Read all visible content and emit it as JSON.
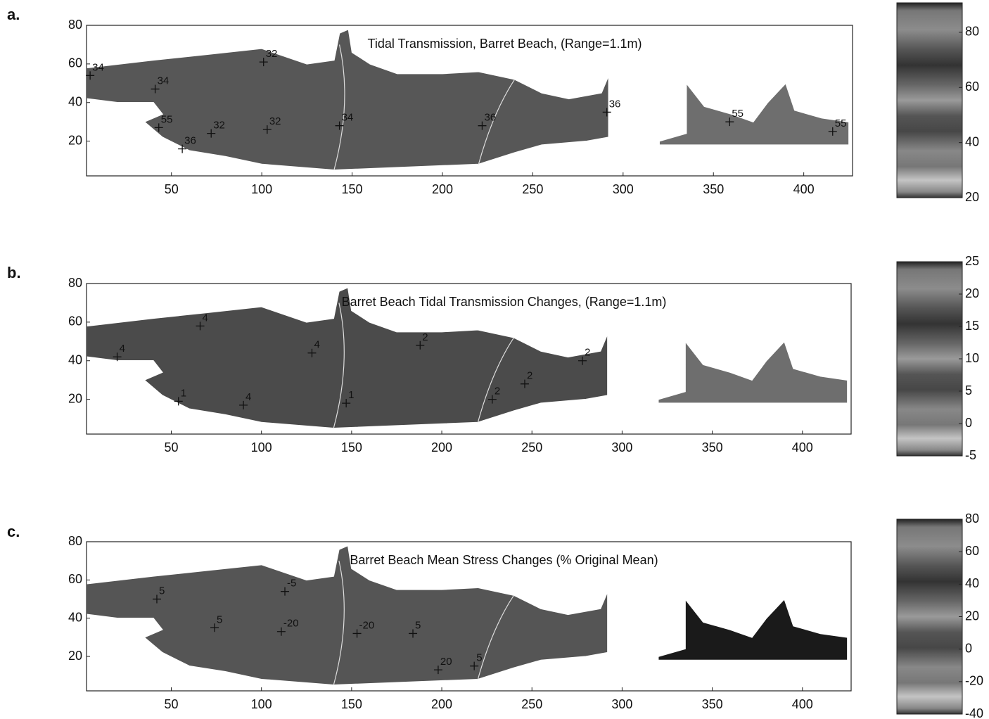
{
  "chart_data": [
    {
      "type": "contour",
      "panel_label": "a.",
      "title": "Tidal Transmission, Barret Beach, (Range=1.1m)",
      "xlim": [
        3,
        427
      ],
      "ylim": [
        2,
        80
      ],
      "xticks": [
        50,
        100,
        150,
        200,
        250,
        300,
        350,
        400
      ],
      "yticks": [
        20,
        40,
        60,
        80
      ],
      "fill": "#575757",
      "colorbar": {
        "clim": [
          20,
          90.7
        ],
        "ticks": [
          20,
          40,
          60,
          80
        ]
      },
      "contour_labels": [
        {
          "label": "34",
          "x": 5,
          "y": 54
        },
        {
          "label": "32",
          "x": 101,
          "y": 61
        },
        {
          "label": "34",
          "x": 41,
          "y": 47
        },
        {
          "label": "55",
          "x": 43,
          "y": 27
        },
        {
          "label": "32",
          "x": 72,
          "y": 24
        },
        {
          "label": "32",
          "x": 103,
          "y": 26
        },
        {
          "label": "36",
          "x": 56,
          "y": 16
        },
        {
          "label": "34",
          "x": 143,
          "y": 28
        },
        {
          "label": "36",
          "x": 222,
          "y": 28
        },
        {
          "label": "36",
          "x": 291,
          "y": 35
        },
        {
          "label": "55",
          "x": 359,
          "y": 30
        },
        {
          "label": "55",
          "x": 416,
          "y": 25
        }
      ]
    },
    {
      "type": "contour",
      "panel_label": "b.",
      "title": "Barret Beach Tidal Transmission Changes, (Range=1.1m)",
      "xlim": [
        3,
        427
      ],
      "ylim": [
        2,
        80
      ],
      "xticks": [
        50,
        100,
        150,
        200,
        250,
        300,
        350,
        400
      ],
      "yticks": [
        20,
        40,
        60,
        80
      ],
      "fill": "#4b4b4b",
      "colorbar": {
        "clim": [
          -5,
          25
        ],
        "ticks": [
          -5,
          0,
          5,
          10,
          15,
          20,
          25
        ]
      },
      "contour_labels": [
        {
          "label": "4",
          "x": 66,
          "y": 58
        },
        {
          "label": "4",
          "x": 20,
          "y": 42
        },
        {
          "label": "4",
          "x": 128,
          "y": 44
        },
        {
          "label": "2",
          "x": 188,
          "y": 48
        },
        {
          "label": "2",
          "x": 228,
          "y": 20
        },
        {
          "label": "2",
          "x": 246,
          "y": 28
        },
        {
          "label": "2",
          "x": 278,
          "y": 40
        },
        {
          "label": "1",
          "x": 54,
          "y": 19
        },
        {
          "label": "4",
          "x": 90,
          "y": 17
        },
        {
          "label": "1",
          "x": 147,
          "y": 18
        }
      ]
    },
    {
      "type": "contour",
      "panel_label": "c.",
      "title": "Barret Beach Mean Stress Changes (% Original Mean)",
      "xlim": [
        3,
        427
      ],
      "ylim": [
        2,
        80
      ],
      "xticks": [
        50,
        100,
        150,
        200,
        250,
        300,
        350,
        400
      ],
      "yticks": [
        20,
        40,
        60,
        80
      ],
      "fill": "#555555",
      "colorbar": {
        "clim": [
          -40,
          80
        ],
        "ticks": [
          -40,
          -20,
          0,
          20,
          40,
          60,
          80
        ]
      },
      "contour_labels": [
        {
          "label": "-5",
          "x": 113,
          "y": 54
        },
        {
          "label": "-20",
          "x": 111,
          "y": 33
        },
        {
          "label": "-20",
          "x": 153,
          "y": 32
        },
        {
          "label": "5",
          "x": 184,
          "y": 32
        },
        {
          "label": "20",
          "x": 198,
          "y": 13
        },
        {
          "label": "5",
          "x": 218,
          "y": 15
        },
        {
          "label": "5",
          "x": 74,
          "y": 35
        },
        {
          "label": "5",
          "x": 42,
          "y": 50
        }
      ]
    }
  ]
}
